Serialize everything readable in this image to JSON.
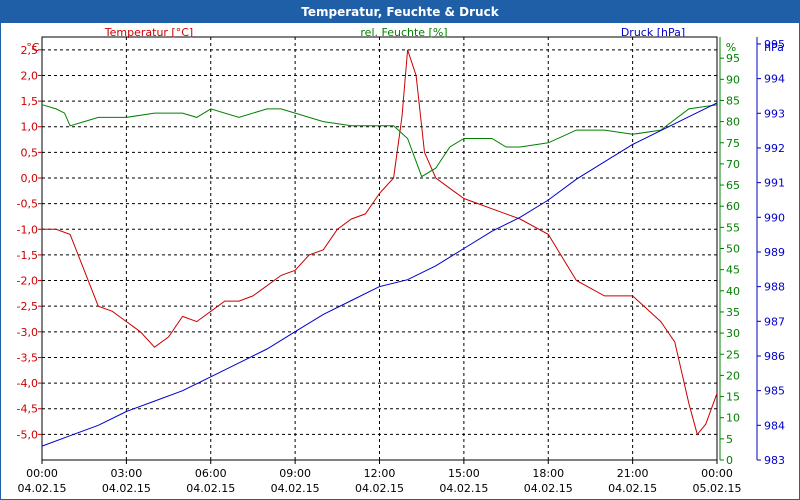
{
  "window": {
    "title": "Temperatur, Feuchte & Druck"
  },
  "colors": {
    "temperature": "#cc0000",
    "humidity": "#008000",
    "pressure": "#0000cc",
    "grid": "#000000",
    "titlebar": "#1f5fa8"
  },
  "chart_data": {
    "type": "line",
    "title": "Temperatur, Feuchte & Druck",
    "grid": true,
    "x_ticks": [
      {
        "time": "00:00",
        "date": "04.02.15"
      },
      {
        "time": "03:00",
        "date": "04.02.15"
      },
      {
        "time": "06:00",
        "date": "04.02.15"
      },
      {
        "time": "09:00",
        "date": "04.02.15"
      },
      {
        "time": "12:00",
        "date": "04.02.15"
      },
      {
        "time": "15:00",
        "date": "04.02.15"
      },
      {
        "time": "18:00",
        "date": "04.02.15"
      },
      {
        "time": "21:00",
        "date": "04.02.15"
      },
      {
        "time": "00:00",
        "date": "05.02.15"
      }
    ],
    "axes": {
      "temperature": {
        "label": "Temperatur [°C]",
        "unit": "°C",
        "ylim": [
          -5.5,
          2.75
        ],
        "ticks": [
          "2,5",
          "2,0",
          "1,5",
          "1,0",
          "0,5",
          "0,0",
          "-0,5",
          "-1,0",
          "-1,5",
          "-2,0",
          "-2,5",
          "-3,0",
          "-3,5",
          "-4,0",
          "-4,5",
          "-5,0"
        ]
      },
      "humidity": {
        "label": "rel. Feuchte [%]",
        "unit": "%",
        "ylim": [
          0,
          100
        ],
        "ticks": [
          "95",
          "90",
          "85",
          "80",
          "75",
          "70",
          "65",
          "60",
          "55",
          "50",
          "45",
          "40",
          "35",
          "30",
          "25",
          "20",
          "15",
          "10",
          "5",
          "0"
        ]
      },
      "pressure": {
        "label": "Druck [hPa]",
        "unit": "hPa",
        "ylim": [
          983,
          995.2
        ],
        "ticks": [
          "995",
          "994",
          "993",
          "992",
          "991",
          "990",
          "989",
          "988",
          "987",
          "986",
          "985",
          "984",
          "983"
        ]
      }
    },
    "series": [
      {
        "name": "Temperatur [°C]",
        "axis": "temperature",
        "x": [
          0,
          0.5,
          1,
          1.5,
          2,
          2.5,
          3,
          3.5,
          4,
          4.5,
          5,
          5.5,
          6,
          6.5,
          7,
          7.5,
          8,
          8.5,
          9,
          9.5,
          10,
          10.5,
          11,
          11.5,
          12,
          12.5,
          12.8,
          13,
          13.3,
          13.6,
          14,
          14.5,
          15,
          15.5,
          16,
          17,
          18,
          19,
          20,
          21,
          22,
          22.5,
          23,
          23.3,
          23.6,
          24
        ],
        "y": [
          -1.0,
          -1.0,
          -1.1,
          -1.8,
          -2.5,
          -2.6,
          -2.8,
          -3.0,
          -3.3,
          -3.1,
          -2.7,
          -2.8,
          -2.6,
          -2.4,
          -2.4,
          -2.3,
          -2.1,
          -1.9,
          -1.8,
          -1.5,
          -1.4,
          -1.0,
          -0.8,
          -0.7,
          -0.3,
          0.0,
          1.2,
          2.5,
          2.0,
          0.5,
          0.0,
          -0.2,
          -0.4,
          -0.5,
          -0.6,
          -0.8,
          -1.1,
          -2.0,
          -2.3,
          -2.3,
          -2.8,
          -3.2,
          -4.4,
          -5.0,
          -4.8,
          -4.2
        ]
      },
      {
        "name": "rel. Feuchte [%]",
        "axis": "humidity",
        "x": [
          0,
          0.5,
          0.8,
          1,
          1.5,
          2,
          3,
          4,
          5,
          5.5,
          6,
          7,
          8,
          8.5,
          9,
          10,
          11,
          12,
          12.5,
          13,
          13.5,
          14,
          14.5,
          15,
          15.5,
          16,
          16.5,
          17,
          18,
          19,
          20,
          21,
          22,
          23,
          24
        ],
        "y": [
          84,
          83,
          82,
          79,
          80,
          81,
          81,
          82,
          82,
          81,
          83,
          81,
          83,
          83,
          82,
          80,
          79,
          79,
          79,
          76,
          67,
          69,
          74,
          76,
          76,
          76,
          74,
          74,
          75,
          78,
          78,
          77,
          78,
          83,
          84
        ]
      },
      {
        "name": "Druck [hPa]",
        "axis": "pressure",
        "x": [
          0,
          1,
          2,
          3,
          4,
          5,
          6,
          7,
          8,
          9,
          10,
          11,
          12,
          13,
          14,
          15,
          16,
          17,
          18,
          19,
          20,
          21,
          22,
          23,
          24
        ],
        "y": [
          983.4,
          983.7,
          984.0,
          984.4,
          984.7,
          985.0,
          985.4,
          985.8,
          986.2,
          986.7,
          987.2,
          987.6,
          988.0,
          988.2,
          988.6,
          989.1,
          989.6,
          990.0,
          990.5,
          991.1,
          991.6,
          992.1,
          992.5,
          992.9,
          993.3
        ]
      }
    ]
  }
}
